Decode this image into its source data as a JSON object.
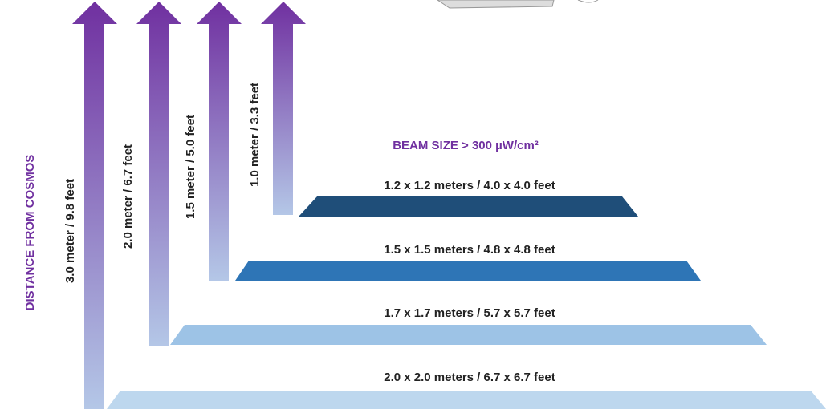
{
  "axis_label": "DISTANCE FROM COSMOS",
  "distances": [
    "3.0 meter / 9.8 feet",
    "2.0 meter / 6.7 feet",
    "1.5 meter / 5.0 feet",
    "1.0 meter / 3.3 feet"
  ],
  "beam_title": "BEAM SIZE > 300 µW/cm²",
  "beams": [
    "1.2 x 1.2 meters / 4.0 x 4.0 feet",
    "1.5 x 1.5 meters / 4.8 x 4.8 feet",
    "1.7 x 1.7 meters / 5.7 x 5.7 feet",
    "2.0 x 2.0 meters / 6.7 x 6.7 feet"
  ]
}
